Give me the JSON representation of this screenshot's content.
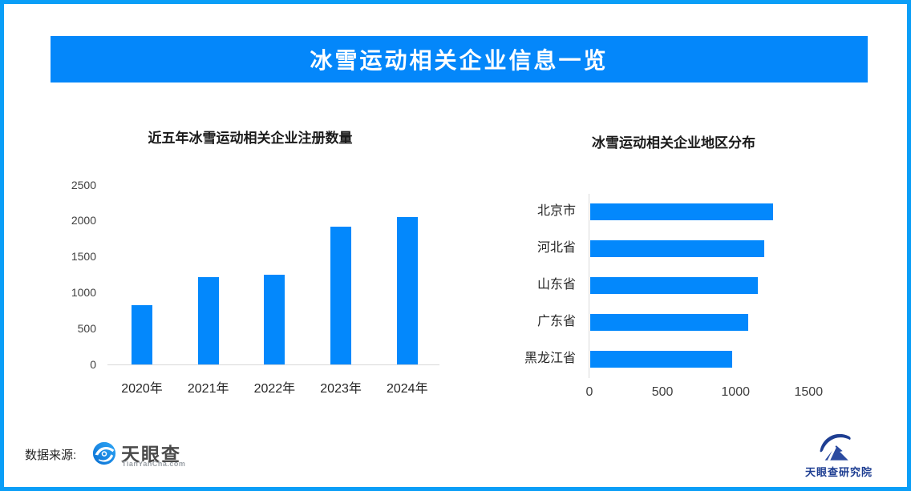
{
  "frame": {
    "border_color": "#0a9ef7",
    "background": "#ffffff"
  },
  "banner": {
    "title": "冰雪运动相关企业信息一览",
    "bg": "#0487fa",
    "text_color": "#ffffff"
  },
  "chart_data": [
    {
      "type": "bar",
      "orientation": "vertical",
      "title": "近五年冰雪运动相关企业注册数量",
      "categories": [
        "2020年",
        "2021年",
        "2022年",
        "2023年",
        "2024年"
      ],
      "values": [
        820,
        1210,
        1250,
        1910,
        2050
      ],
      "xlabel": "",
      "ylabel": "",
      "ylim": [
        0,
        2500
      ],
      "yticks": [
        0,
        500,
        1000,
        1500,
        2000,
        2500
      ],
      "grid": false,
      "legend": "none",
      "bar_color": "#0388fc",
      "axis_line_color": "#d9d9d9",
      "tick_text_color": "#404040",
      "category_text_color": "#262626"
    },
    {
      "type": "bar",
      "orientation": "horizontal",
      "title": "冰雪运动相关企业地区分布",
      "categories": [
        "北京市",
        "河北省",
        "山东省",
        "广东省",
        "黑龙江省"
      ],
      "values": [
        1250,
        1190,
        1145,
        1080,
        970
      ],
      "xlabel": "",
      "ylabel": "",
      "xlim": [
        0,
        1800
      ],
      "xticks": [
        0,
        500,
        1000,
        1500
      ],
      "grid": false,
      "legend": "none",
      "bar_color": "#0388fc",
      "axis_line_color": "#d9d9d9",
      "tick_text_color": "#404040",
      "category_text_color": "#262626"
    }
  ],
  "footer": {
    "source_label": "数据来源:",
    "tyc": {
      "name": "天眼查",
      "domain": "TianYanCha.com"
    },
    "institute": {
      "name": "天眼查研究院"
    }
  },
  "icons": {
    "tianyancha_icon": "blue-swirl-eye-circle",
    "institute_icon": "navy-crescent-over-mountain"
  }
}
